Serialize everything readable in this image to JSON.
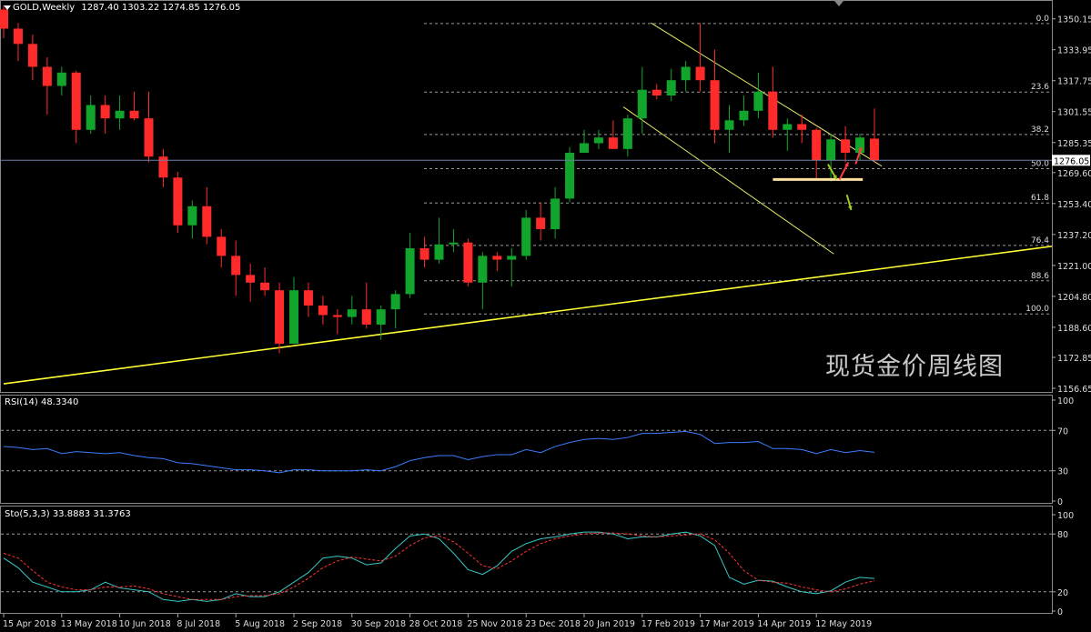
{
  "header": {
    "symbol_timeframe": "GOLD,Weekly",
    "ohlc": "1287.40 1303.22 1274.85 1276.05"
  },
  "watermark": "现货金价周线图",
  "current_price_label": "1276.05",
  "colors": {
    "background": "#000000",
    "bull_candle": "#12a52c",
    "bear_candle": "#ff2a2a",
    "grid_fib": "#9a9a9a",
    "trendline": "#ffff33",
    "channel": "#e8e866",
    "rsi_line": "#3c7cff",
    "sto_main": "#39c7c7",
    "sto_signal": "#ff3333",
    "support_line": "#ffe0a0",
    "arrow_green": "#9ccc22",
    "arrow_red": "#ff3a3a"
  },
  "price_axis": {
    "min": 1156.65,
    "max": 1360,
    "ticks": [
      "1350.15",
      "1333.95",
      "1317.75",
      "1301.55",
      "1285.35",
      "1269.60",
      "1253.40",
      "1237.20",
      "1221.00",
      "1204.80",
      "1188.60",
      "1172.85",
      "1156.65"
    ]
  },
  "fibonacci": {
    "high": 1347.7,
    "low": 1195.6,
    "levels": [
      {
        "label": "0.0",
        "ratio": 0.0
      },
      {
        "label": "23.6",
        "ratio": 0.236
      },
      {
        "label": "38.2",
        "ratio": 0.382
      },
      {
        "label": "50.0",
        "ratio": 0.5
      },
      {
        "label": "61.8",
        "ratio": 0.618
      },
      {
        "label": "76.4",
        "ratio": 0.764
      },
      {
        "label": "88.6",
        "ratio": 0.886
      },
      {
        "label": "100.0",
        "ratio": 1.0
      }
    ]
  },
  "rsi": {
    "label": "RSI(14) 48.3340",
    "axis_ticks": [
      "100",
      "70",
      "30",
      "0"
    ],
    "levels": [
      70,
      30
    ]
  },
  "sto": {
    "label": "Sto(5,3,3) 33.8883 31.3763",
    "axis_ticks": [
      "100",
      "80",
      "20",
      "0"
    ],
    "levels": [
      80,
      20
    ]
  },
  "time_axis": {
    "labels": [
      "15 Apr 2018",
      "13 May 2018",
      "10 Jun 2018",
      "8 Jul 2018",
      "5 Aug 2018",
      "2 Sep 2018",
      "30 Sep 2018",
      "28 Oct 2018",
      "25 Nov 2018",
      "23 Dec 2018",
      "20 Jan 2019",
      "17 Feb 2019",
      "17 Mar 2019",
      "14 Apr 2019",
      "12 May 2019"
    ]
  },
  "chart_data": {
    "type": "candlestick",
    "series_ohlc": [
      [
        1355,
        1357,
        1340,
        1345
      ],
      [
        1345,
        1348,
        1328,
        1337
      ],
      [
        1337,
        1342,
        1318,
        1325
      ],
      [
        1325,
        1330,
        1300,
        1315
      ],
      [
        1315,
        1325,
        1310,
        1322
      ],
      [
        1322,
        1323,
        1285,
        1292
      ],
      [
        1292,
        1310,
        1290,
        1305
      ],
      [
        1305,
        1310,
        1290,
        1298
      ],
      [
        1298,
        1310,
        1292,
        1302
      ],
      [
        1302,
        1312,
        1297,
        1298
      ],
      [
        1298,
        1312,
        1275,
        1278
      ],
      [
        1278,
        1282,
        1262,
        1267
      ],
      [
        1267,
        1270,
        1238,
        1242
      ],
      [
        1242,
        1255,
        1235,
        1252
      ],
      [
        1252,
        1262,
        1232,
        1236
      ],
      [
        1236,
        1240,
        1220,
        1226
      ],
      [
        1226,
        1234,
        1205,
        1216
      ],
      [
        1216,
        1222,
        1202,
        1212
      ],
      [
        1212,
        1220,
        1205,
        1208
      ],
      [
        1208,
        1212,
        1175,
        1180
      ],
      [
        1180,
        1215,
        1180,
        1208
      ],
      [
        1208,
        1212,
        1194,
        1200
      ],
      [
        1200,
        1205,
        1190,
        1195
      ],
      [
        1195,
        1198,
        1185,
        1194
      ],
      [
        1194,
        1205,
        1190,
        1198
      ],
      [
        1198,
        1212,
        1188,
        1190
      ],
      [
        1190,
        1200,
        1182,
        1198
      ],
      [
        1198,
        1208,
        1188,
        1206
      ],
      [
        1206,
        1238,
        1204,
        1230
      ],
      [
        1230,
        1236,
        1220,
        1224
      ],
      [
        1224,
        1246,
        1222,
        1232
      ],
      [
        1232,
        1240,
        1228,
        1233
      ],
      [
        1233,
        1235,
        1210,
        1212
      ],
      [
        1212,
        1228,
        1198,
        1226
      ],
      [
        1226,
        1228,
        1218,
        1224
      ],
      [
        1224,
        1230,
        1210,
        1226
      ],
      [
        1226,
        1250,
        1224,
        1246
      ],
      [
        1246,
        1254,
        1234,
        1240
      ],
      [
        1240,
        1262,
        1235,
        1256
      ],
      [
        1256,
        1283,
        1254,
        1280
      ],
      [
        1280,
        1292,
        1280,
        1285
      ],
      [
        1285,
        1292,
        1282,
        1288
      ],
      [
        1288,
        1297,
        1282,
        1282
      ],
      [
        1282,
        1300,
        1278,
        1298
      ],
      [
        1298,
        1325,
        1290,
        1313
      ],
      [
        1313,
        1316,
        1308,
        1310
      ],
      [
        1310,
        1324,
        1307,
        1318
      ],
      [
        1318,
        1328,
        1312,
        1325
      ],
      [
        1325,
        1348,
        1312,
        1318
      ],
      [
        1318,
        1334,
        1285,
        1292
      ],
      [
        1292,
        1305,
        1280,
        1297
      ],
      [
        1297,
        1310,
        1294,
        1302
      ],
      [
        1302,
        1322,
        1298,
        1312
      ],
      [
        1312,
        1325,
        1288,
        1292
      ],
      [
        1292,
        1298,
        1281,
        1295
      ],
      [
        1295,
        1300,
        1285,
        1292
      ],
      [
        1292,
        1293,
        1266,
        1276
      ],
      [
        1276,
        1290,
        1265,
        1287
      ],
      [
        1287,
        1294,
        1275,
        1280
      ],
      [
        1280,
        1290,
        1276,
        1288
      ],
      [
        1287.4,
        1303.22,
        1274.85,
        1276.05
      ]
    ],
    "rsi_values": [
      54,
      53,
      51,
      52,
      47,
      49,
      48,
      47,
      48,
      45,
      43,
      42,
      38,
      37,
      35,
      33,
      31,
      31,
      30,
      28,
      31,
      31,
      30,
      30,
      30,
      31,
      30,
      34,
      40,
      43,
      45,
      45,
      41,
      44,
      46,
      46,
      51,
      48,
      54,
      58,
      61,
      62,
      61,
      63,
      67,
      67,
      68,
      69,
      66,
      57,
      58,
      58,
      59,
      52,
      52,
      51,
      47,
      51,
      48,
      50,
      48.33
    ],
    "sto_main": [
      55,
      45,
      30,
      25,
      20,
      20,
      22,
      30,
      24,
      22,
      20,
      12,
      10,
      12,
      10,
      12,
      18,
      15,
      15,
      20,
      30,
      40,
      55,
      57,
      55,
      48,
      50,
      65,
      78,
      80,
      75,
      60,
      43,
      38,
      47,
      62,
      70,
      75,
      77,
      80,
      82,
      82,
      80,
      75,
      77,
      77,
      80,
      82,
      78,
      68,
      35,
      28,
      32,
      31,
      25,
      20,
      18,
      21,
      30,
      35,
      33.89
    ],
    "sto_signal": [
      60,
      55,
      42,
      30,
      25,
      22,
      22,
      25,
      25,
      26,
      23,
      18,
      15,
      12,
      12,
      12,
      15,
      16,
      16,
      18,
      25,
      34,
      45,
      52,
      56,
      54,
      52,
      57,
      68,
      76,
      78,
      72,
      60,
      47,
      44,
      52,
      62,
      70,
      75,
      78,
      80,
      81,
      81,
      80,
      78,
      77,
      78,
      79,
      80,
      74,
      60,
      42,
      32,
      30,
      29,
      25,
      22,
      20,
      23,
      28,
      31.38
    ]
  }
}
